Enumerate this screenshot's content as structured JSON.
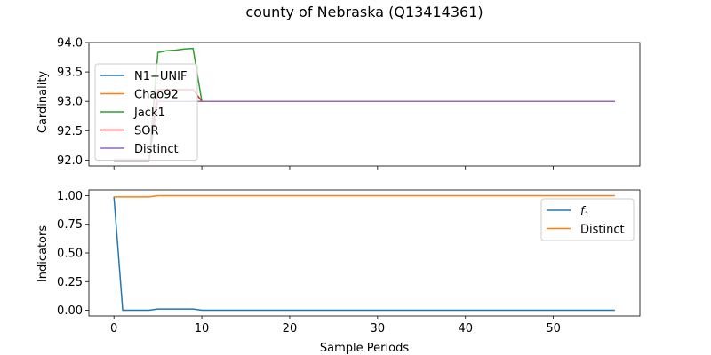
{
  "figure": {
    "title": "county of Nebraska (Q13414361)"
  },
  "chart_data": [
    {
      "type": "line",
      "ylabel": "Cardinality",
      "xlabel": "",
      "xlim": [
        -2.85,
        59.85
      ],
      "ylim": [
        91.9,
        94.0
      ],
      "yticks": [
        92.0,
        92.5,
        93.0,
        93.5,
        94.0
      ],
      "ytick_labels": [
        "92.0",
        "92.5",
        "93.0",
        "93.5",
        "94.0"
      ],
      "xticks": [
        0,
        10,
        20,
        30,
        40,
        50
      ],
      "legend_position": "upper-left",
      "series": [
        {
          "name": "N1−UNIF",
          "color": "#1f77b4",
          "x": [
            0,
            1,
            2,
            3,
            4
          ],
          "y": [
            92.0,
            92.0,
            92.0,
            92.0,
            92.0
          ]
        },
        {
          "name": "Chao92",
          "color": "#ff7f0e",
          "x": [
            0,
            1,
            2,
            3,
            4
          ],
          "y": [
            92.0,
            92.0,
            92.0,
            92.0,
            92.0
          ]
        },
        {
          "name": "Jack1",
          "color": "#2ca02c",
          "x": [
            0,
            1,
            2,
            3,
            4,
            5,
            6,
            7,
            8,
            9,
            10,
            57
          ],
          "y": [
            92.0,
            92.0,
            92.0,
            92.0,
            92.0,
            93.83,
            93.86,
            93.87,
            93.89,
            93.9,
            93.0,
            93.0
          ]
        },
        {
          "name": "SOR",
          "color": "#d62728",
          "x": [
            0,
            1,
            2,
            3,
            4,
            5,
            6,
            7,
            8,
            9,
            10,
            57
          ],
          "y": [
            92.0,
            92.0,
            92.0,
            92.0,
            92.0,
            93.2,
            93.2,
            93.2,
            93.2,
            93.2,
            93.0,
            93.0
          ]
        },
        {
          "name": "Distinct",
          "color": "#9467bd",
          "x": [
            0,
            4,
            5,
            57
          ],
          "y": [
            92.0,
            92.0,
            93.0,
            93.0
          ]
        }
      ]
    },
    {
      "type": "line",
      "ylabel": "Indicators",
      "xlabel": "Sample Periods",
      "xlim": [
        -2.85,
        59.85
      ],
      "ylim": [
        -0.05,
        1.05
      ],
      "yticks": [
        0.0,
        0.25,
        0.5,
        0.75,
        1.0
      ],
      "ytick_labels": [
        "0.00",
        "0.25",
        "0.50",
        "0.75",
        "1.00"
      ],
      "xticks": [
        0,
        10,
        20,
        30,
        40,
        50
      ],
      "xtick_labels": [
        "0",
        "10",
        "20",
        "30",
        "40",
        "50"
      ],
      "legend_position": "upper-right",
      "series": [
        {
          "name": "f",
          "name_subscript": "1",
          "color": "#1f77b4",
          "x": [
            0,
            1,
            2,
            3,
            4,
            5,
            6,
            7,
            8,
            9,
            10,
            57
          ],
          "y": [
            0.99,
            0.0,
            0.0,
            0.0,
            0.0,
            0.011,
            0.011,
            0.011,
            0.011,
            0.011,
            0.0,
            0.0
          ]
        },
        {
          "name": "Distinct",
          "color": "#ff7f0e",
          "x": [
            0,
            4,
            5,
            57
          ],
          "y": [
            0.989,
            0.989,
            1.0,
            1.0
          ]
        }
      ]
    }
  ]
}
